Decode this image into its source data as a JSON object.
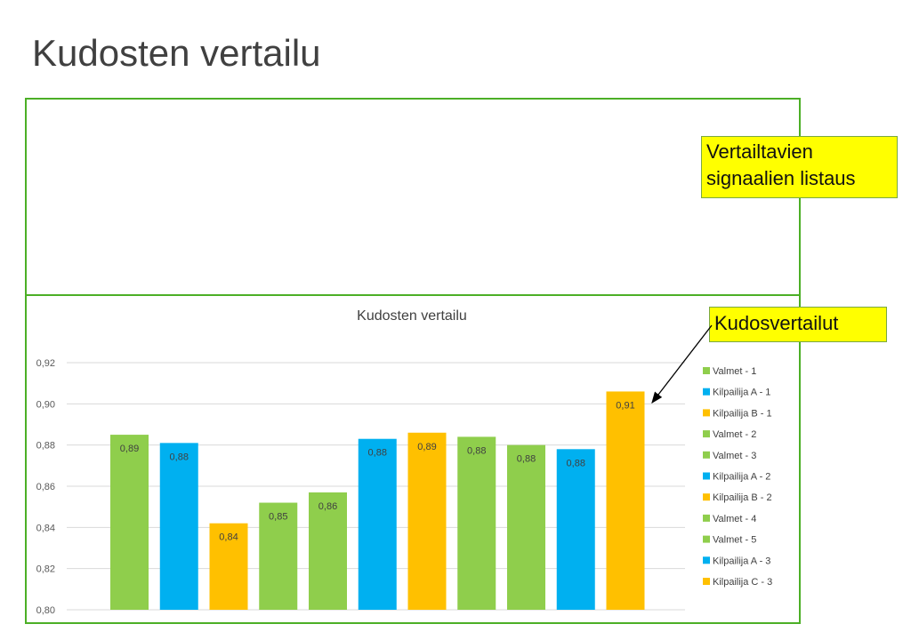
{
  "slide": {
    "title": "Kudosten vertailu"
  },
  "callouts": {
    "signals_line1": "Vertailtavien",
    "signals_line2": "signaalien listaus",
    "tissue": "Kudosvertailut"
  },
  "colors": {
    "frame": "#4caf26",
    "valmet": "#8fce4c",
    "kilpailija_a": "#00b0f0",
    "kilpailija_bc": "#ffc000",
    "callout": "#ffff00",
    "grid": "#d9d9d9"
  },
  "chart_data": {
    "type": "bar",
    "title": "Kudosten vertailu",
    "xlabel": "",
    "ylabel": "",
    "ylim": [
      0.8,
      0.92
    ],
    "yticks": [
      "0,80",
      "0,82",
      "0,84",
      "0,86",
      "0,88",
      "0,90",
      "0,92"
    ],
    "grid": true,
    "legend_position": "right",
    "series": [
      {
        "name": "Valmet - 1",
        "value": 0.885,
        "label": "0,89",
        "color": "#8fce4c"
      },
      {
        "name": "Kilpailija A - 1",
        "value": 0.881,
        "label": "0,88",
        "color": "#00b0f0"
      },
      {
        "name": "Kilpailija B - 1",
        "value": 0.842,
        "label": "0,84",
        "color": "#ffc000"
      },
      {
        "name": "Valmet - 2",
        "value": 0.852,
        "label": "0,85",
        "color": "#8fce4c"
      },
      {
        "name": "Valmet - 3",
        "value": 0.857,
        "label": "0,86",
        "color": "#8fce4c"
      },
      {
        "name": "Kilpailija A - 2",
        "value": 0.883,
        "label": "0,88",
        "color": "#00b0f0"
      },
      {
        "name": "Kilpailija B - 2",
        "value": 0.886,
        "label": "0,89",
        "color": "#ffc000"
      },
      {
        "name": "Valmet - 4",
        "value": 0.884,
        "label": "0,88",
        "color": "#8fce4c"
      },
      {
        "name": "Valmet - 5",
        "value": 0.88,
        "label": "0,88",
        "color": "#8fce4c"
      },
      {
        "name": "Kilpailija A - 3",
        "value": 0.878,
        "label": "0,88",
        "color": "#00b0f0"
      },
      {
        "name": "Kilpailija C - 3",
        "value": 0.906,
        "label": "0,91",
        "color": "#ffc000"
      }
    ]
  }
}
